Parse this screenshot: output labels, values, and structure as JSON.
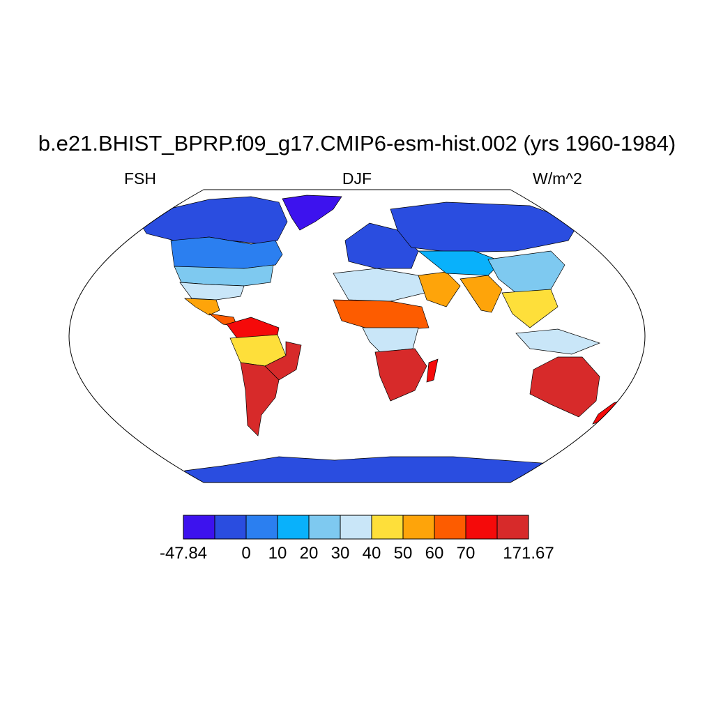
{
  "title": "b.e21.BHIST_BPRP.f09_g17.CMIP6-esm-hist.002 (yrs 1960-1984)",
  "variable": "FSH",
  "season": "DJF",
  "units": "W/m^2",
  "colorbar": {
    "colors": [
      "#3d12ee",
      "#2a4de0",
      "#2b7ff0",
      "#09b1fb",
      "#7ec9f0",
      "#c9e6f8",
      "#fedf3a",
      "#fea40a",
      "#fd5c00",
      "#f50a0a",
      "#d72a2a"
    ],
    "labels": [
      {
        "text": "-47.84",
        "edge": 0
      },
      {
        "text": "0",
        "edge": 2
      },
      {
        "text": "10",
        "edge": 3
      },
      {
        "text": "20",
        "edge": 4
      },
      {
        "text": "30",
        "edge": 5
      },
      {
        "text": "40",
        "edge": 6
      },
      {
        "text": "50",
        "edge": 7
      },
      {
        "text": "60",
        "edge": 8
      },
      {
        "text": "70",
        "edge": 9
      },
      {
        "text": "171.67",
        "edge": 11
      }
    ]
  },
  "regions": [
    {
      "name": "greenland",
      "level": 0
    },
    {
      "name": "north-canada",
      "level": 1
    },
    {
      "name": "canada-south",
      "level": 2
    },
    {
      "name": "usa",
      "level": 4
    },
    {
      "name": "usa-south",
      "level": 5
    },
    {
      "name": "mexico",
      "level": 7
    },
    {
      "name": "central-america",
      "level": 8
    },
    {
      "name": "south-america-north",
      "level": 9
    },
    {
      "name": "amazon",
      "level": 6
    },
    {
      "name": "brazil-east",
      "level": 10
    },
    {
      "name": "south-america-south",
      "level": 10
    },
    {
      "name": "europe",
      "level": 1
    },
    {
      "name": "north-africa",
      "level": 5
    },
    {
      "name": "sahel",
      "level": 8
    },
    {
      "name": "central-africa",
      "level": 5
    },
    {
      "name": "southern-africa",
      "level": 10
    },
    {
      "name": "madagascar",
      "level": 9
    },
    {
      "name": "middle-east",
      "level": 7
    },
    {
      "name": "russia",
      "level": 1
    },
    {
      "name": "central-asia",
      "level": 3
    },
    {
      "name": "india",
      "level": 7
    },
    {
      "name": "china",
      "level": 4
    },
    {
      "name": "southeast-asia",
      "level": 6
    },
    {
      "name": "indonesia",
      "level": 5
    },
    {
      "name": "australia",
      "level": 10
    },
    {
      "name": "new-zealand",
      "level": 9
    },
    {
      "name": "antarctica",
      "level": 1
    }
  ]
}
